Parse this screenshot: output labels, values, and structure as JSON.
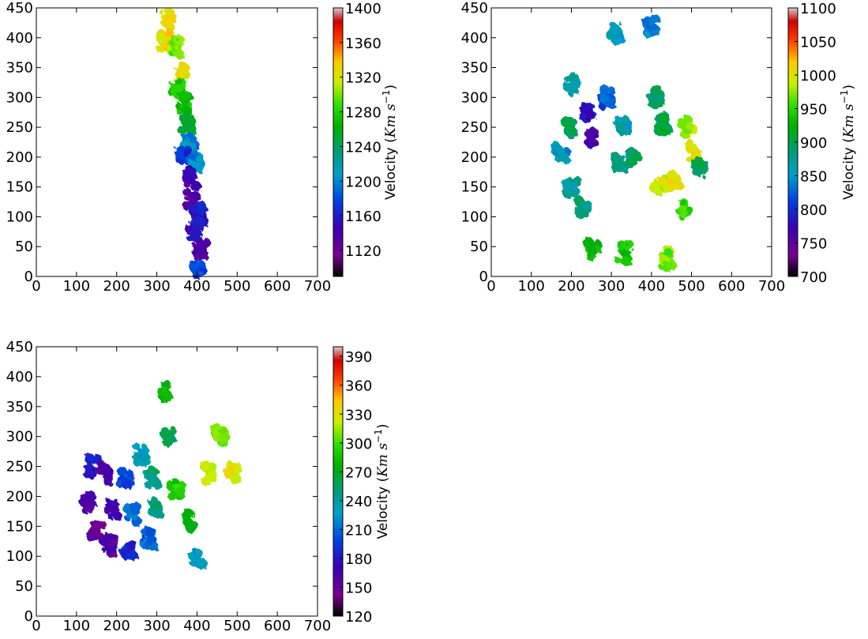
{
  "chart_data": [
    {
      "type": "heatmap",
      "panel": "top-left",
      "x_ticks": [
        0,
        100,
        200,
        300,
        400,
        500,
        600,
        700
      ],
      "y_ticks": [
        0,
        50,
        100,
        150,
        200,
        250,
        300,
        350,
        400,
        450
      ],
      "xlim": [
        0,
        700
      ],
      "ylim": [
        0,
        450
      ],
      "colorbar": {
        "label": "Velocity ($Km\\ s^{-1}$)",
        "range": [
          1090,
          1400
        ],
        "ticks": [
          1120,
          1160,
          1200,
          1240,
          1280,
          1320,
          1360,
          1400
        ],
        "colormap": "spectral"
      },
      "grid": false,
      "blobs": [
        {
          "x": 325,
          "y": 432,
          "v": 1330
        },
        {
          "x": 320,
          "y": 395,
          "v": 1330
        },
        {
          "x": 345,
          "y": 385,
          "v": 1300
        },
        {
          "x": 360,
          "y": 340,
          "v": 1320
        },
        {
          "x": 350,
          "y": 318,
          "v": 1280
        },
        {
          "x": 365,
          "y": 290,
          "v": 1270
        },
        {
          "x": 375,
          "y": 255,
          "v": 1250
        },
        {
          "x": 380,
          "y": 225,
          "v": 1200
        },
        {
          "x": 370,
          "y": 200,
          "v": 1170
        },
        {
          "x": 395,
          "y": 195,
          "v": 1200
        },
        {
          "x": 385,
          "y": 165,
          "v": 1140
        },
        {
          "x": 385,
          "y": 130,
          "v": 1130
        },
        {
          "x": 405,
          "y": 105,
          "v": 1160
        },
        {
          "x": 395,
          "y": 75,
          "v": 1150
        },
        {
          "x": 410,
          "y": 45,
          "v": 1130
        },
        {
          "x": 400,
          "y": 15,
          "v": 1180
        }
      ]
    },
    {
      "type": "heatmap",
      "panel": "top-right",
      "x_ticks": [
        0,
        100,
        200,
        300,
        400,
        500,
        600,
        700
      ],
      "y_ticks": [
        0,
        50,
        100,
        150,
        200,
        250,
        300,
        350,
        400,
        450
      ],
      "xlim": [
        0,
        700
      ],
      "ylim": [
        0,
        450
      ],
      "colorbar": {
        "label": "Velocity ($Km\\ s^{-1}$)",
        "range": [
          700,
          1100
        ],
        "ticks": [
          700,
          750,
          800,
          850,
          900,
          950,
          1000,
          1050,
          1100
        ],
        "colormap": "spectral"
      },
      "grid": false,
      "blobs": [
        {
          "x": 200,
          "y": 320,
          "v": 870
        },
        {
          "x": 195,
          "y": 250,
          "v": 890
        },
        {
          "x": 175,
          "y": 205,
          "v": 850
        },
        {
          "x": 200,
          "y": 150,
          "v": 870
        },
        {
          "x": 230,
          "y": 115,
          "v": 880
        },
        {
          "x": 240,
          "y": 275,
          "v": 780
        },
        {
          "x": 250,
          "y": 230,
          "v": 760
        },
        {
          "x": 290,
          "y": 300,
          "v": 820
        },
        {
          "x": 330,
          "y": 250,
          "v": 860
        },
        {
          "x": 350,
          "y": 200,
          "v": 890
        },
        {
          "x": 320,
          "y": 190,
          "v": 880
        },
        {
          "x": 410,
          "y": 300,
          "v": 890
        },
        {
          "x": 430,
          "y": 255,
          "v": 900
        },
        {
          "x": 490,
          "y": 250,
          "v": 980
        },
        {
          "x": 505,
          "y": 210,
          "v": 1000
        },
        {
          "x": 460,
          "y": 160,
          "v": 1010
        },
        {
          "x": 420,
          "y": 150,
          "v": 990
        },
        {
          "x": 520,
          "y": 180,
          "v": 900
        },
        {
          "x": 480,
          "y": 110,
          "v": 950
        },
        {
          "x": 255,
          "y": 45,
          "v": 930
        },
        {
          "x": 330,
          "y": 40,
          "v": 940
        },
        {
          "x": 440,
          "y": 30,
          "v": 970
        },
        {
          "x": 310,
          "y": 410,
          "v": 860
        },
        {
          "x": 400,
          "y": 418,
          "v": 840
        }
      ]
    },
    {
      "type": "heatmap",
      "panel": "bottom-left",
      "x_ticks": [
        0,
        100,
        200,
        300,
        400,
        500,
        600,
        700
      ],
      "y_ticks": [
        0,
        50,
        100,
        150,
        200,
        250,
        300,
        350,
        400,
        450
      ],
      "xlim": [
        0,
        700
      ],
      "ylim": [
        0,
        450
      ],
      "colorbar": {
        "label": "Velocity ($Km\\ s^{-1}$)",
        "range": [
          120,
          400
        ],
        "ticks": [
          120,
          150,
          180,
          210,
          240,
          270,
          300,
          330,
          360,
          390
        ],
        "colormap": "spectral"
      },
      "grid": false,
      "blobs": [
        {
          "x": 140,
          "y": 250,
          "v": 180
        },
        {
          "x": 130,
          "y": 190,
          "v": 160
        },
        {
          "x": 150,
          "y": 145,
          "v": 150
        },
        {
          "x": 170,
          "y": 240,
          "v": 165
        },
        {
          "x": 190,
          "y": 180,
          "v": 170
        },
        {
          "x": 180,
          "y": 120,
          "v": 160
        },
        {
          "x": 220,
          "y": 230,
          "v": 200
        },
        {
          "x": 240,
          "y": 170,
          "v": 210
        },
        {
          "x": 230,
          "y": 110,
          "v": 190
        },
        {
          "x": 260,
          "y": 270,
          "v": 230
        },
        {
          "x": 290,
          "y": 230,
          "v": 250
        },
        {
          "x": 300,
          "y": 180,
          "v": 250
        },
        {
          "x": 280,
          "y": 130,
          "v": 210
        },
        {
          "x": 330,
          "y": 300,
          "v": 260
        },
        {
          "x": 350,
          "y": 210,
          "v": 290
        },
        {
          "x": 380,
          "y": 160,
          "v": 280
        },
        {
          "x": 400,
          "y": 100,
          "v": 230
        },
        {
          "x": 430,
          "y": 240,
          "v": 320
        },
        {
          "x": 490,
          "y": 240,
          "v": 330
        },
        {
          "x": 460,
          "y": 300,
          "v": 310
        },
        {
          "x": 320,
          "y": 375,
          "v": 280
        }
      ]
    }
  ]
}
